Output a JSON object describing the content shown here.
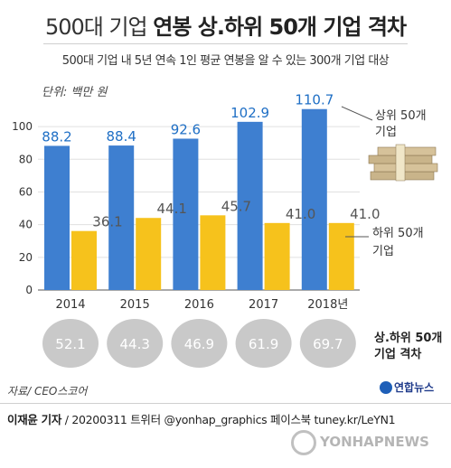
{
  "title_light": "500대 기업",
  "title_bold": "연봉 상.하위 50개 기업 격차",
  "subtitle": "500대 기업 내 5년 연속 1인 평균 연봉을 알 수 있는 300개 기업 대상",
  "unit": "단위: 백만 원",
  "legend_upper": [
    "상위 50개",
    "기업"
  ],
  "legend_lower": [
    "하위 50개",
    "기업"
  ],
  "gap_label": [
    "상.하위 50개",
    "기업 격차"
  ],
  "source": "자료/ CEO스코어",
  "credit_name": "이재윤 기자",
  "credit_rest": "/ 20200311   트위터 @yonhap_graphics  페이스북 tuney.kr/LeYN1",
  "logo_text": "연합뉴스",
  "watermark_text": "YONHAPNEWS",
  "colors": {
    "upper": "#3e7fd0",
    "lower": "#f6c21c",
    "upper_label": "#1f6fc5",
    "lower_label": "#555555",
    "gap_circle": "#c9c9c9"
  },
  "chart_data": {
    "type": "bar",
    "categories": [
      "2014",
      "2015",
      "2016",
      "2017",
      "2018년"
    ],
    "series": [
      {
        "name": "상위 50개 기업",
        "values": [
          88.2,
          88.4,
          92.6,
          102.9,
          110.7
        ]
      },
      {
        "name": "하위 50개 기업",
        "values": [
          36.1,
          44.1,
          45.7,
          41.0,
          41.0
        ]
      }
    ],
    "gaps": [
      52.1,
      44.3,
      46.9,
      61.9,
      69.7
    ],
    "ylim": [
      0,
      110
    ],
    "yticks": [
      0,
      20,
      40,
      60,
      80,
      100
    ],
    "ylabel": "단위: 백만 원"
  }
}
